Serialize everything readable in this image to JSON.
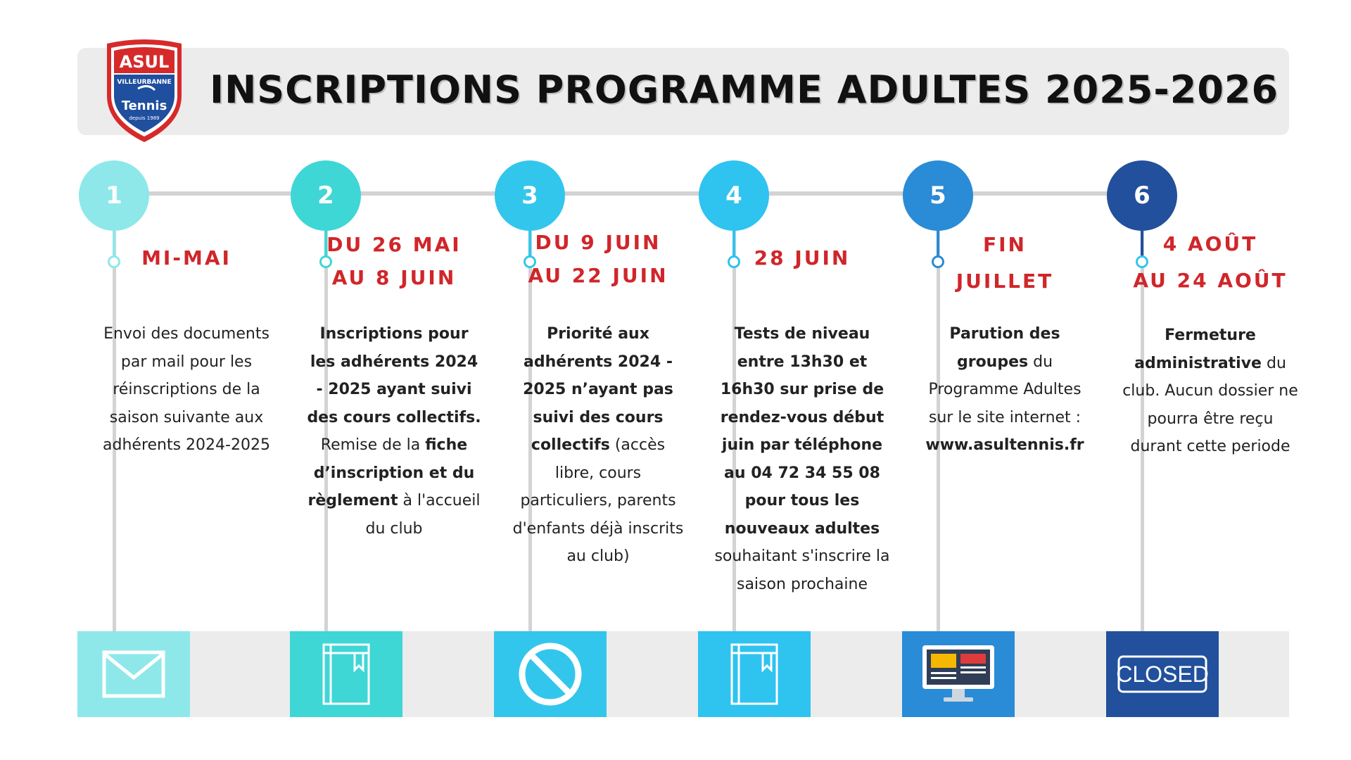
{
  "header": {
    "title": "INSCRIPTIONS PROGRAMME ADULTES 2025-2026"
  },
  "logo": {
    "name": "ASUL",
    "sub": "VILLEURBANNE",
    "sport": "Tennis",
    "since": "depuis 1989"
  },
  "colors": {
    "c1": "#8ee8ea",
    "c2": "#3fd6d6",
    "c3": "#33c6ec",
    "c4": "#2fc3f0",
    "c5": "#2a8bd6",
    "c6": "#22509c",
    "date_red": "#d0262a"
  },
  "steps": [
    {
      "number": "1",
      "date_lines": [
        "MI-MAI"
      ],
      "desc": [
        {
          "t": "Envoi des documents par mail pour les réinscriptions de la saison suivante aux adhérents 2024-2025",
          "b": false
        }
      ],
      "icon": "envelope-icon"
    },
    {
      "number": "2",
      "date_lines": [
        "DU 26 MAI",
        "AU 8 JUIN"
      ],
      "desc": [
        {
          "t": "Inscriptions pour les adhérents 2024 - 2025 ayant suivi des cours collectifs.",
          "b": true
        },
        {
          "t": " Remise de la ",
          "b": false
        },
        {
          "t": "fiche d’inscription et du règlement",
          "b": true
        },
        {
          "t": " à l'accueil du club",
          "b": false
        }
      ],
      "icon": "book-icon"
    },
    {
      "number": "3",
      "date_lines": [
        "DU 9 JUIN",
        "AU 22 JUIN"
      ],
      "desc": [
        {
          "t": "Priorité aux adhérents 2024 - 2025 n’ayant pas suivi des cours collectifs",
          "b": true
        },
        {
          "t": " (accès libre, cours particuliers, parents d'enfants déjà inscrits au club)",
          "b": false
        }
      ],
      "icon": "prohibited-icon"
    },
    {
      "number": "4",
      "date_lines": [
        "28 JUIN"
      ],
      "desc": [
        {
          "t": "Tests de niveau entre 13h30 et 16h30 sur prise de rendez-vous début juin par téléphone au 04 72 34 55 08 pour tous les nouveaux adultes",
          "b": true
        },
        {
          "t": " souhaitant  s'inscrire la saison prochaine",
          "b": false
        }
      ],
      "icon": "book-icon"
    },
    {
      "number": "5",
      "date_lines": [
        "FIN",
        "JUILLET"
      ],
      "desc": [
        {
          "t": "Parution des groupes",
          "b": true
        },
        {
          "t": " du Programme Adultes sur le site internet : ",
          "b": false
        },
        {
          "t": "www.asultennis.fr",
          "b": true
        }
      ],
      "icon": "computer-icon"
    },
    {
      "number": "6",
      "date_lines": [
        "4 AOÛT",
        "AU 24 AOÛT"
      ],
      "desc": [
        {
          "t": "Fermeture administrative",
          "b": true
        },
        {
          "t": " du club. Aucun dossier ne pourra être reçu durant cette periode",
          "b": false
        }
      ],
      "icon": "closed-sign-icon",
      "icon_text": "CLOSED"
    }
  ]
}
